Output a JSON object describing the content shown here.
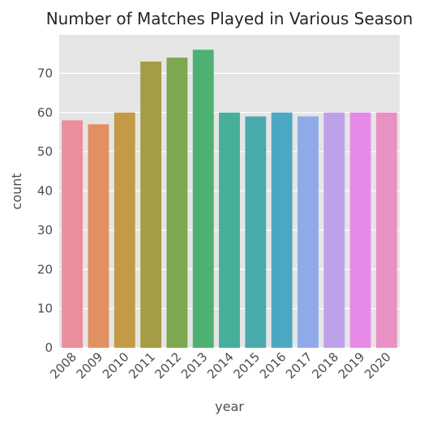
{
  "chart_data": {
    "type": "bar",
    "title": "Number of Matches Played in Various Season",
    "xlabel": "year",
    "ylabel": "count",
    "categories": [
      "2008",
      "2009",
      "2010",
      "2011",
      "2012",
      "2013",
      "2014",
      "2015",
      "2016",
      "2017",
      "2018",
      "2019",
      "2020"
    ],
    "values": [
      58,
      57,
      60,
      73,
      74,
      76,
      60,
      59,
      60,
      59,
      60,
      60,
      60
    ],
    "ylim": [
      0,
      79.8
    ],
    "yticks": [
      "0",
      "10",
      "20",
      "30",
      "40",
      "50",
      "60",
      "70"
    ],
    "grid": true,
    "colors": [
      "#ea8e9c",
      "#e19161",
      "#c49a47",
      "#a59d45",
      "#7da850",
      "#4db173",
      "#47ae9a",
      "#49aaab",
      "#4ca8c2",
      "#8eabe8",
      "#bea1e9",
      "#e78ae7",
      "#e991c5"
    ],
    "background": "#e5e5e5"
  }
}
